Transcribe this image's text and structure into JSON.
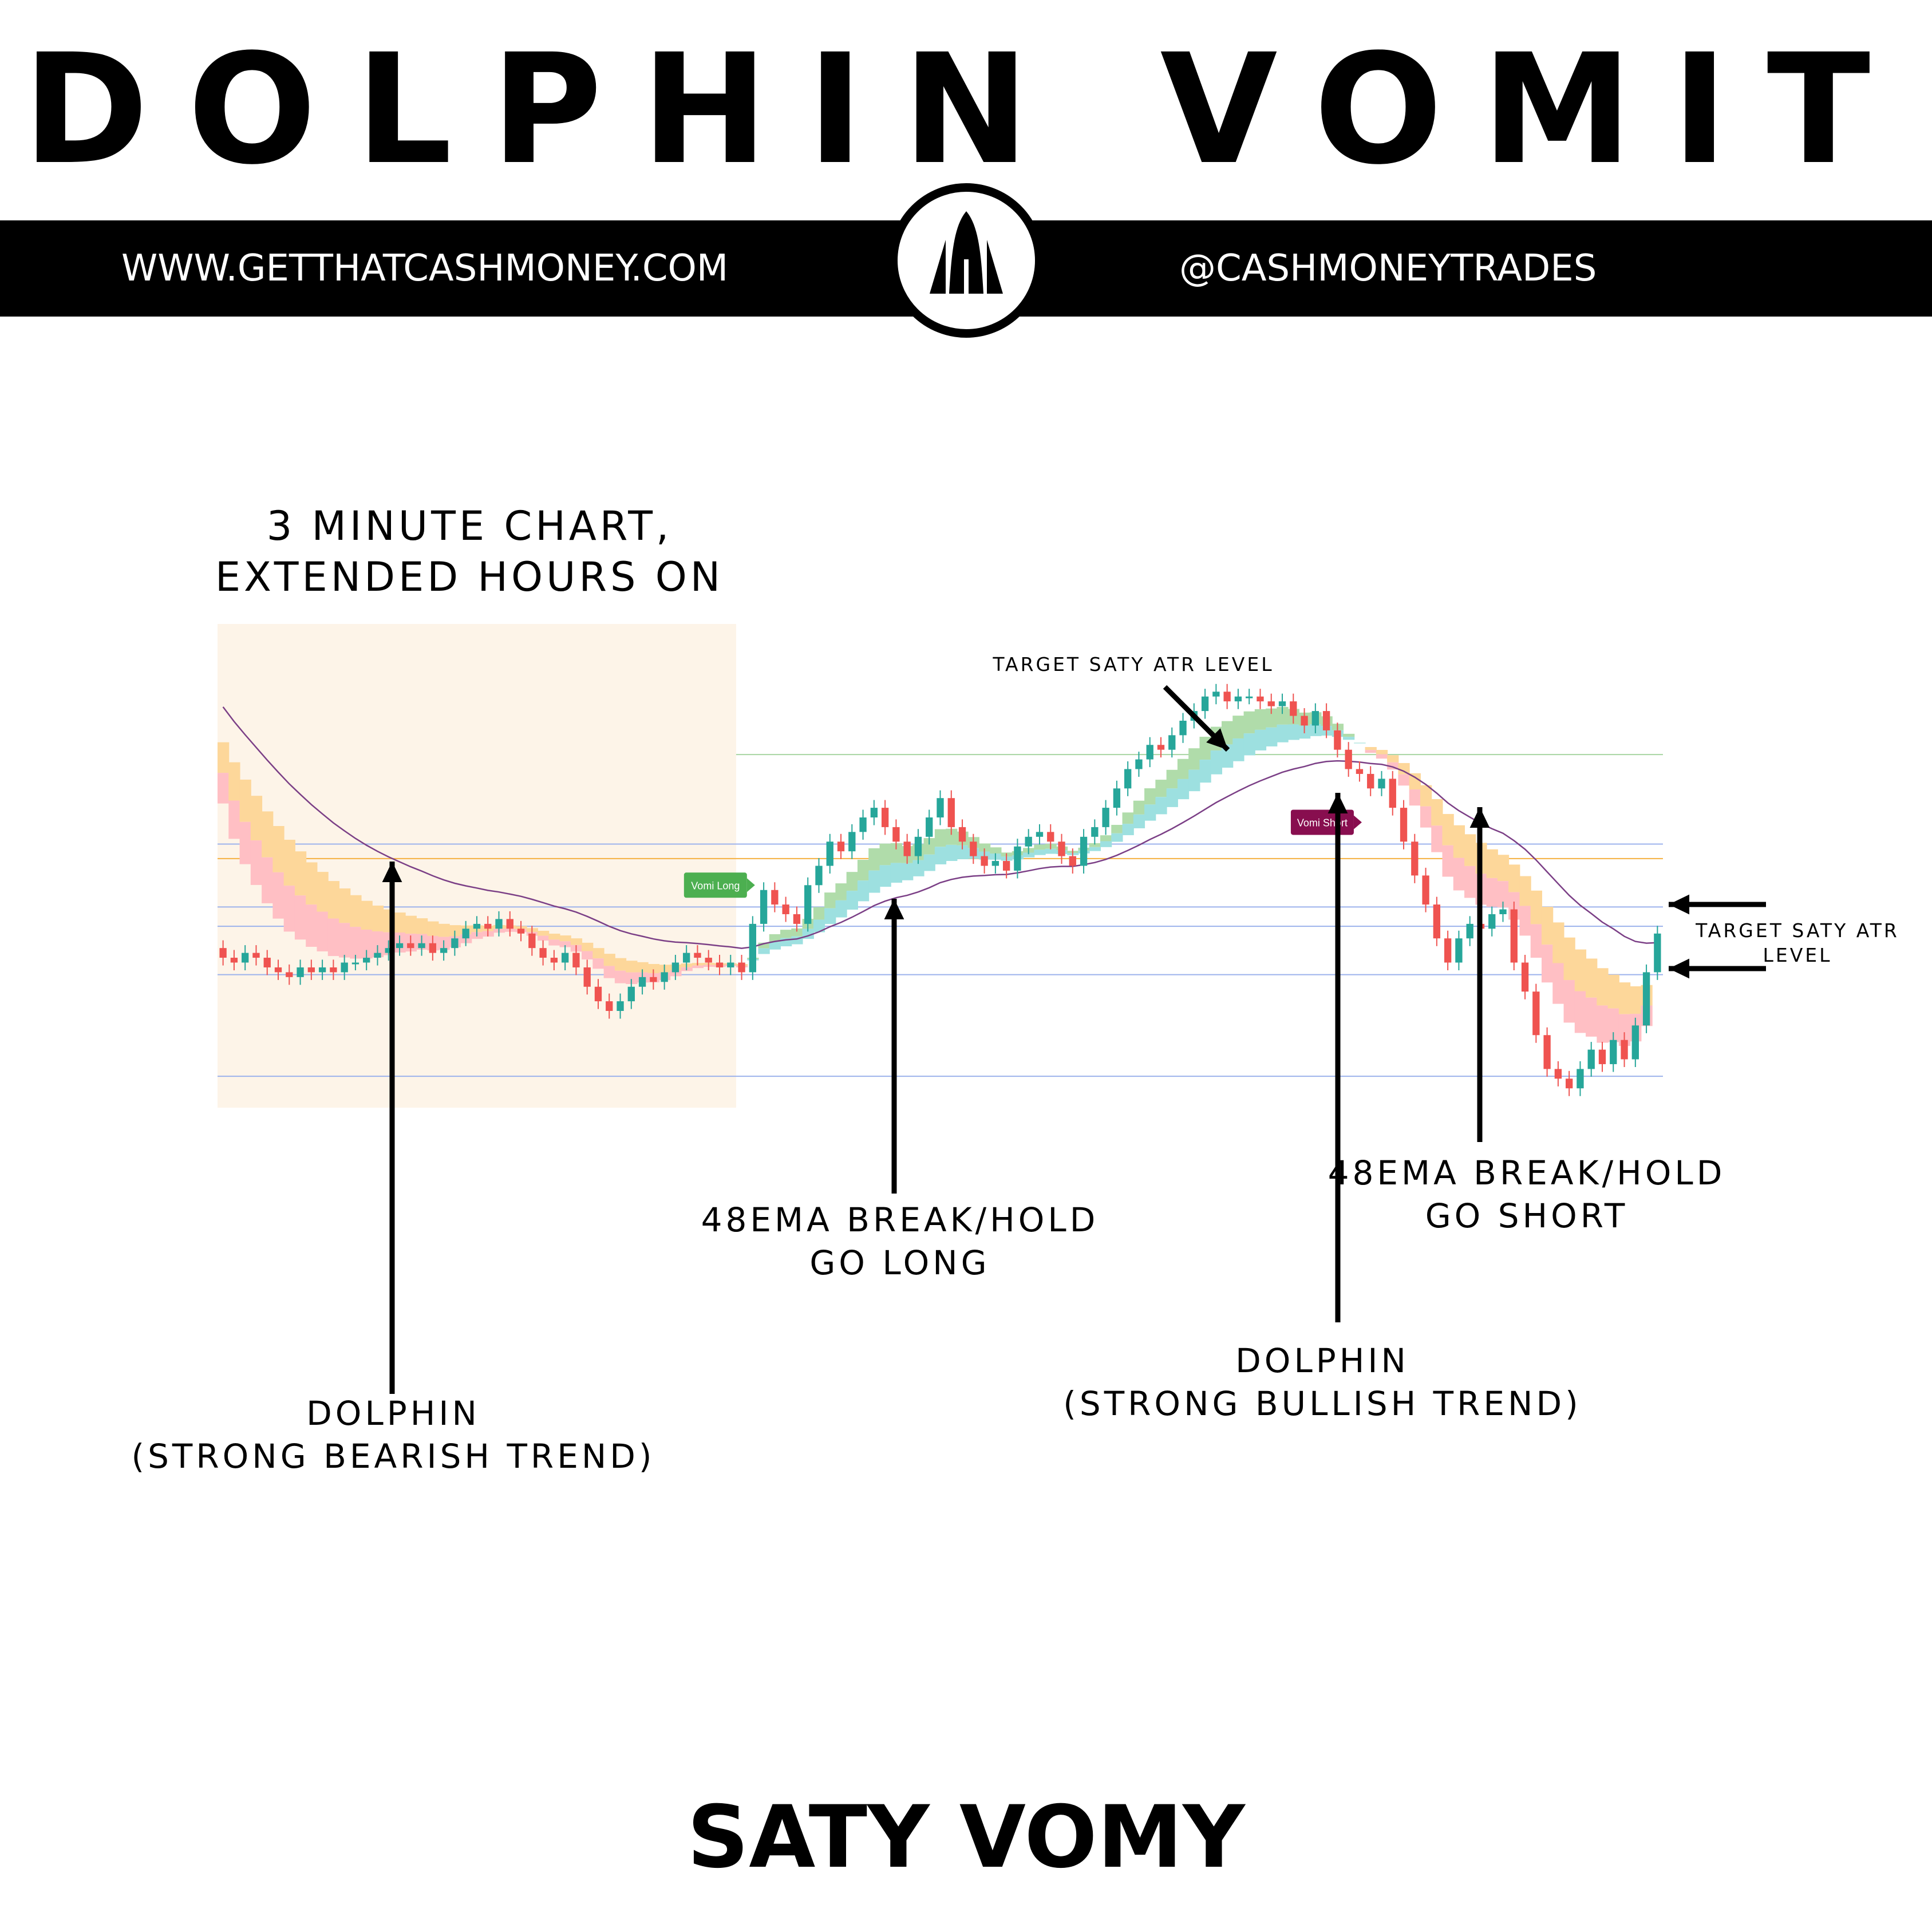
{
  "header": {
    "title": "DOLPHIN VOMIT",
    "website": "WWW.GETTHATCASHMONEY.COM",
    "handle": "@CASHMONEYTRADES"
  },
  "annotations": {
    "chart_note": "3 MINUTE CHART,\nEXTENDED HOURS ON",
    "target_top": "TARGET SATY ATR LEVEL",
    "target_right": "TARGET SATY ATR\nLEVEL",
    "dolphin_bear": "DOLPHIN\n(STRONG BEARISH TREND)",
    "ema_long": "48EMA BREAK/HOLD\nGO LONG",
    "ema_short": "48EMA BREAK/HOLD\nGO SHORT",
    "dolphin_bull": "DOLPHIN\n(STRONG BULLISH TREND)",
    "signal_long": "Vomi Long",
    "signal_short": "Vomi Short"
  },
  "footer": {
    "title": "SATY VOMY"
  },
  "colors": {
    "background": "#ffffff",
    "banner": "#000000",
    "premarket_shade": "#fdf4e8",
    "bull_candle": "#26a69a",
    "bear_candle": "#ef5350",
    "cloud_bear_fast": "#ffbfc4",
    "cloud_bear_slow": "#fdd79a",
    "cloud_bull_fast": "#b0dcaa",
    "cloud_bull_slow": "#9de0e0",
    "long_signal": "#4caf50",
    "short_signal": "#880e4f",
    "vwap_line": "#7b3f86",
    "level_blue": "#9cb2ec",
    "level_orange": "#f5b041",
    "level_green": "#a8d5a2"
  },
  "chart_data": {
    "type": "candlestick",
    "timeframe": "3 minute",
    "extended_hours": true,
    "ylim": [
      0,
      100
    ],
    "premarket_end_index": 47,
    "levels": [
      {
        "name": "upper-target",
        "value": 73.0,
        "color": "level_green",
        "start": 47
      },
      {
        "name": "upper-mid",
        "value": 54.5,
        "color": "level_blue",
        "start": 0
      },
      {
        "name": "trigger-up",
        "value": 51.5,
        "color": "level_orange",
        "start": 0
      },
      {
        "name": "mid",
        "value": 41.5,
        "color": "level_blue",
        "start": 0
      },
      {
        "name": "close-ref",
        "value": 37.5,
        "color": "level_blue",
        "start": 0
      },
      {
        "name": "lower-mid",
        "value": 27.5,
        "color": "level_blue",
        "start": 0
      },
      {
        "name": "lower-target",
        "value": 6.5,
        "color": "level_blue",
        "start": 0
      }
    ],
    "closes": [
      31,
      30,
      32,
      31,
      29,
      28,
      27,
      29,
      28,
      29,
      28,
      30,
      30,
      31,
      32,
      33,
      34,
      33,
      34,
      32,
      33,
      35,
      37,
      38,
      37,
      39,
      37,
      36,
      33,
      31,
      30,
      32,
      29,
      25,
      22,
      20,
      22,
      25,
      27,
      26,
      28,
      30,
      32,
      31,
      30,
      29,
      30,
      28,
      38,
      45,
      42,
      40,
      38,
      46,
      50,
      55,
      53,
      57,
      60,
      62,
      58,
      55,
      52,
      56,
      60,
      64,
      58,
      55,
      52,
      50,
      51,
      49,
      54,
      56,
      57,
      55,
      52,
      50,
      56,
      58,
      62,
      66,
      70,
      72,
      75,
      74,
      77,
      80,
      82,
      85,
      86,
      84,
      85,
      85,
      84,
      83,
      84,
      81,
      79,
      82,
      78,
      74,
      70,
      69,
      66,
      68,
      62,
      55,
      48,
      42,
      35,
      30,
      35,
      38,
      37,
      40,
      41,
      30,
      24,
      15,
      8,
      6,
      4,
      8,
      12,
      9,
      14,
      10,
      17,
      28,
      36
    ]
  }
}
